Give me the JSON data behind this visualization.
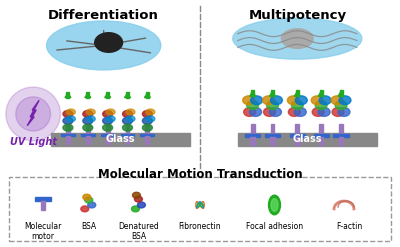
{
  "left_label": "Differentiation",
  "right_label": "Multipotency",
  "uv_label": "UV Light",
  "glass_label": "Glass",
  "section_title": "Molecular Motion Transduction",
  "legend_items": [
    "Molecular\nmotor",
    "BSA",
    "Denatured\nBSA",
    "Fibronectin",
    "Focal adhesion",
    "F-actin"
  ],
  "bg_color": "#ffffff",
  "cell_left_color": "#87CEEB",
  "cell_right_color": "#87CEEB",
  "glass_color": "#888888",
  "motor_stem_color": "#9977BB",
  "motor_head_color": "#3366CC",
  "uv_color": "#7722AA",
  "green_spike_color": "#22AA22",
  "dashed_line_color": "#888888",
  "legend_box_color": "#999999",
  "nucleus_left_color": "#222222",
  "nucleus_right_color": "#AAAAAA"
}
